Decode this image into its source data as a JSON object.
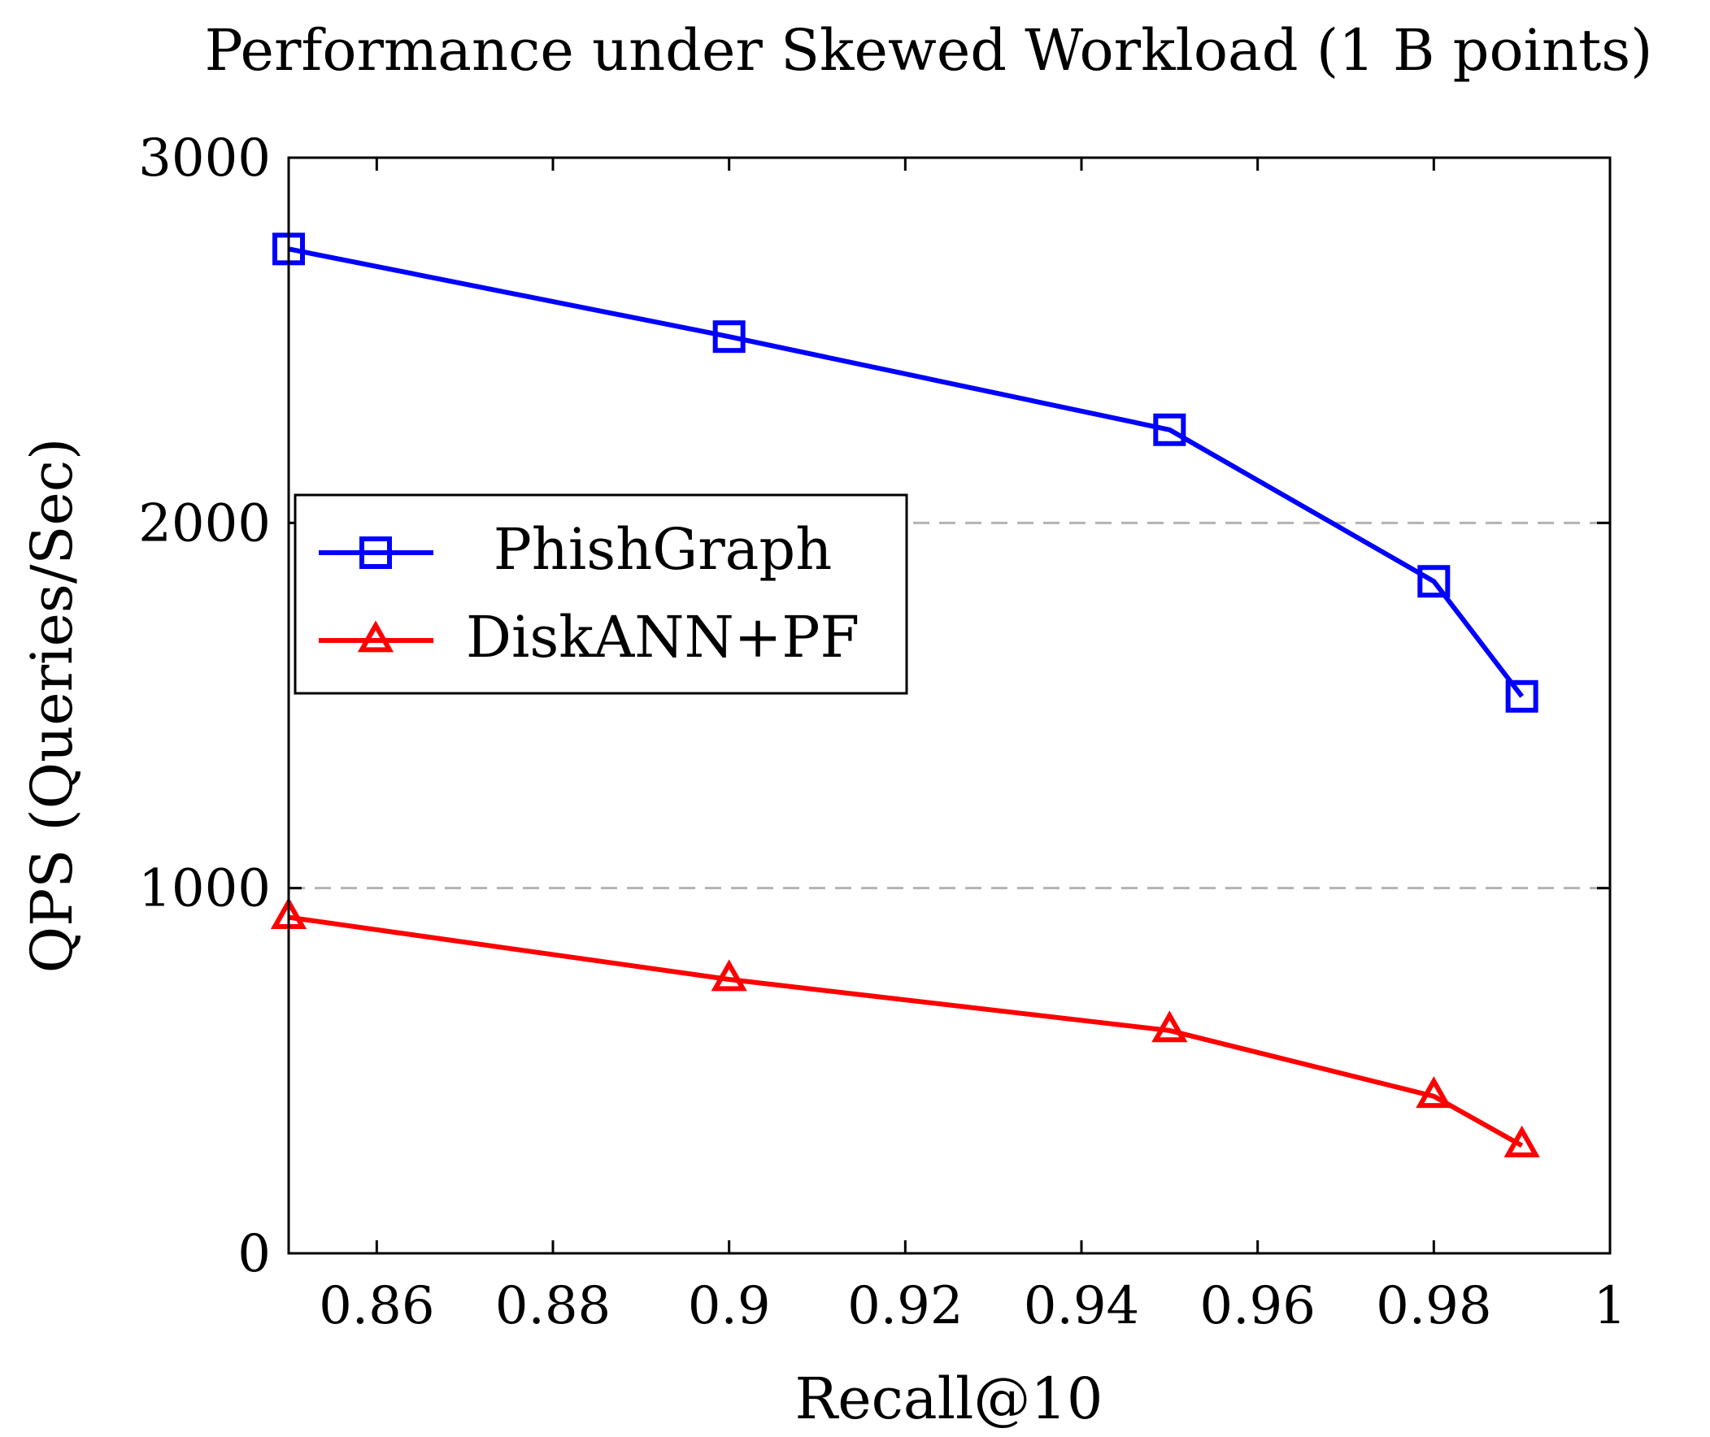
{
  "chart_data": {
    "type": "line",
    "title": "Performance under Skewed Workload (1 B points)",
    "xlabel": "Recall@10",
    "ylabel": "QPS (Queries/Sec)",
    "xlim": [
      0.85,
      1.0
    ],
    "ylim": [
      0,
      3000
    ],
    "xticks": [
      0.86,
      0.88,
      0.9,
      0.92,
      0.94,
      0.96,
      0.98,
      1
    ],
    "xtick_labels": [
      "0.86",
      "0.88",
      "0.9",
      "0.92",
      "0.94",
      "0.96",
      "0.98",
      "1"
    ],
    "yticks": [
      0,
      1000,
      2000,
      3000
    ],
    "ytick_labels": [
      "0",
      "1000",
      "2000",
      "3000"
    ],
    "grid": "horizontal dashed",
    "legend_position": "center-left",
    "series": [
      {
        "name": "PhishGraph",
        "color": "#0000ff",
        "marker": "square",
        "x": [
          0.85,
          0.9,
          0.95,
          0.98,
          0.99
        ],
        "y": [
          2750,
          2510,
          2255,
          1840,
          1525
        ]
      },
      {
        "name": "DiskANN+PF",
        "color": "#ff0000",
        "marker": "triangle",
        "x": [
          0.85,
          0.9,
          0.95,
          0.98,
          0.99
        ],
        "y": [
          920,
          750,
          610,
          430,
          295
        ]
      }
    ]
  }
}
